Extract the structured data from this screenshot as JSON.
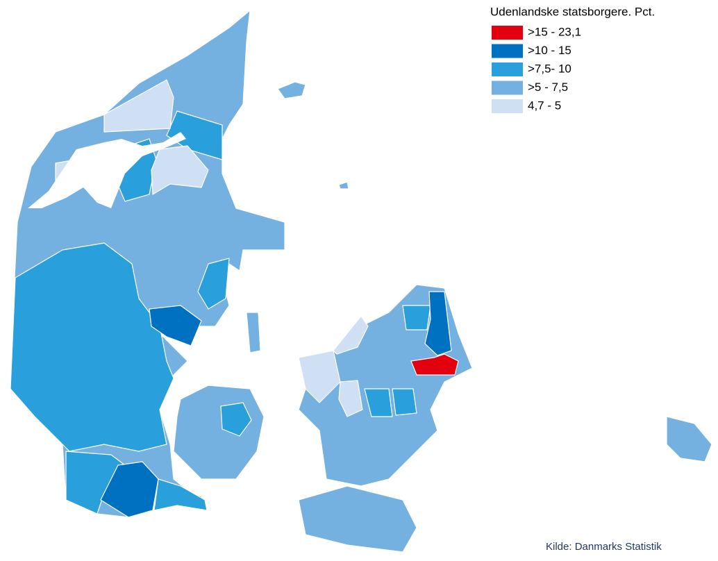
{
  "legend": {
    "title": "Udenlandske statsborgere. Pct.",
    "items": [
      {
        "label": ">15 - 23,1",
        "color": "#e3000f"
      },
      {
        "label": ">10 - 15",
        "color": "#0070c0"
      },
      {
        "label": ">7,5- 10",
        "color": "#29a0dc"
      },
      {
        "label": ">5 - 7,5",
        "color": "#74b0e0"
      },
      {
        "label": "4,7 - 5",
        "color": "#cfe0f4"
      }
    ]
  },
  "source": "Kilde: Danmarks Statistik"
}
